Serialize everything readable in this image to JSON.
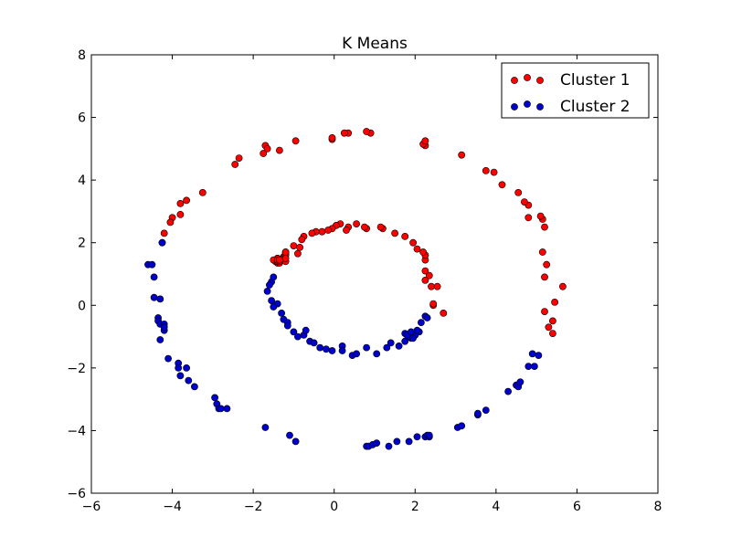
{
  "chart_data": {
    "type": "scatter",
    "title": "K Means",
    "xlabel": "",
    "ylabel": "",
    "xlim": [
      -6,
      8
    ],
    "ylim": [
      -6,
      8
    ],
    "xticks": [
      "−6",
      "−4",
      "−2",
      "0",
      "2",
      "4",
      "6",
      "8"
    ],
    "yticks": [
      "−6",
      "−4",
      "−2",
      "0",
      "2",
      "4",
      "6",
      "8"
    ],
    "xtick_values": [
      -6,
      -4,
      -2,
      0,
      2,
      4,
      6,
      8
    ],
    "ytick_values": [
      -6,
      -4,
      -2,
      0,
      2,
      4,
      6,
      8
    ],
    "grid": false,
    "legend_position": "top-right",
    "series": [
      {
        "name": "Cluster 1",
        "color": "#ff0000",
        "points": [
          [
            5.65,
            0.6
          ],
          [
            5.45,
            0.1
          ],
          [
            5.4,
            -0.5
          ],
          [
            5.4,
            -0.9
          ],
          [
            5.3,
            -0.7
          ],
          [
            5.2,
            -0.2
          ],
          [
            5.2,
            0.9
          ],
          [
            5.25,
            1.3
          ],
          [
            5.15,
            1.7
          ],
          [
            5.2,
            2.5
          ],
          [
            5.15,
            2.75
          ],
          [
            5.1,
            2.85
          ],
          [
            4.8,
            2.8
          ],
          [
            4.8,
            3.2
          ],
          [
            4.7,
            3.3
          ],
          [
            4.55,
            3.6
          ],
          [
            4.15,
            3.85
          ],
          [
            3.95,
            4.25
          ],
          [
            3.75,
            4.3
          ],
          [
            3.15,
            4.8
          ],
          [
            2.25,
            5.1
          ],
          [
            2.2,
            5.15
          ],
          [
            2.25,
            5.25
          ],
          [
            0.9,
            5.5
          ],
          [
            0.8,
            5.55
          ],
          [
            0.35,
            5.5
          ],
          [
            0.25,
            5.5
          ],
          [
            -0.05,
            5.3
          ],
          [
            -0.05,
            5.35
          ],
          [
            -0.95,
            5.25
          ],
          [
            -1.35,
            4.95
          ],
          [
            -1.7,
            5.1
          ],
          [
            -1.65,
            5.0
          ],
          [
            -1.75,
            4.85
          ],
          [
            -2.35,
            4.7
          ],
          [
            -2.45,
            4.5
          ],
          [
            -3.25,
            3.6
          ],
          [
            -3.65,
            3.35
          ],
          [
            -3.8,
            3.25
          ],
          [
            -3.8,
            2.9
          ],
          [
            -4.0,
            2.8
          ],
          [
            -4.05,
            2.65
          ],
          [
            -4.2,
            2.3
          ],
          [
            -4.25,
            2.0
          ],
          [
            2.7,
            -0.25
          ],
          [
            2.45,
            0.0
          ],
          [
            2.45,
            0.05
          ],
          [
            2.55,
            0.6
          ],
          [
            2.4,
            0.6
          ],
          [
            2.35,
            0.95
          ],
          [
            2.25,
            0.8
          ],
          [
            2.25,
            1.1
          ],
          [
            2.25,
            1.45
          ],
          [
            2.25,
            1.6
          ],
          [
            2.2,
            1.7
          ],
          [
            2.05,
            1.8
          ],
          [
            1.95,
            2.0
          ],
          [
            1.75,
            2.2
          ],
          [
            1.5,
            2.3
          ],
          [
            1.2,
            2.45
          ],
          [
            1.15,
            2.5
          ],
          [
            0.8,
            2.45
          ],
          [
            0.75,
            2.5
          ],
          [
            0.55,
            2.6
          ],
          [
            0.35,
            2.5
          ],
          [
            0.3,
            2.4
          ],
          [
            0.15,
            2.6
          ],
          [
            0.05,
            2.55
          ],
          [
            -0.05,
            2.45
          ],
          [
            -0.15,
            2.4
          ],
          [
            -0.3,
            2.35
          ],
          [
            -0.45,
            2.35
          ],
          [
            -0.55,
            2.3
          ],
          [
            -0.75,
            2.2
          ],
          [
            -0.8,
            2.1
          ],
          [
            -0.85,
            1.85
          ],
          [
            -0.9,
            1.65
          ],
          [
            -1.0,
            1.9
          ],
          [
            -1.2,
            1.7
          ],
          [
            -1.2,
            1.65
          ],
          [
            -1.25,
            1.55
          ],
          [
            -1.4,
            1.5
          ],
          [
            -1.35,
            1.4
          ],
          [
            -1.35,
            1.45
          ],
          [
            -1.25,
            1.5
          ],
          [
            -1.2,
            1.4
          ],
          [
            -1.45,
            1.45
          ],
          [
            -1.4,
            1.35
          ],
          [
            -1.2,
            1.6
          ],
          [
            -1.45,
            1.4
          ],
          [
            -1.4,
            1.5
          ],
          [
            -1.35,
            1.35
          ],
          [
            -1.5,
            1.45
          ],
          [
            -1.4,
            1.4
          ],
          [
            -1.2,
            1.5
          ],
          [
            -1.2,
            1.7
          ],
          [
            -1.35,
            1.4
          ],
          [
            -1.4,
            1.45
          ],
          [
            -1.35,
            1.45
          ]
        ]
      },
      {
        "name": "Cluster 2",
        "color": "#0000cc",
        "points": [
          [
            -4.25,
            2.0
          ],
          [
            -4.6,
            1.3
          ],
          [
            -4.5,
            1.3
          ],
          [
            -4.45,
            0.9
          ],
          [
            -4.45,
            0.25
          ],
          [
            -4.3,
            0.2
          ],
          [
            -4.35,
            -0.4
          ],
          [
            -4.35,
            -0.5
          ],
          [
            -4.3,
            -0.6
          ],
          [
            -4.2,
            -0.6
          ],
          [
            -4.2,
            -0.8
          ],
          [
            -4.2,
            -0.7
          ],
          [
            -4.3,
            -1.1
          ],
          [
            -4.1,
            -1.7
          ],
          [
            -3.85,
            -1.85
          ],
          [
            -3.85,
            -2.0
          ],
          [
            -3.65,
            -2.0
          ],
          [
            -3.8,
            -2.25
          ],
          [
            -3.6,
            -2.4
          ],
          [
            -3.45,
            -2.6
          ],
          [
            -2.95,
            -2.95
          ],
          [
            -2.9,
            -3.15
          ],
          [
            -2.85,
            -3.3
          ],
          [
            -2.8,
            -3.3
          ],
          [
            -2.65,
            -3.3
          ],
          [
            -1.7,
            -3.9
          ],
          [
            -1.1,
            -4.15
          ],
          [
            -0.95,
            -4.35
          ],
          [
            0.8,
            -4.5
          ],
          [
            0.85,
            -4.5
          ],
          [
            0.95,
            -4.45
          ],
          [
            1.05,
            -4.4
          ],
          [
            1.35,
            -4.5
          ],
          [
            1.55,
            -4.35
          ],
          [
            1.85,
            -4.35
          ],
          [
            2.05,
            -4.2
          ],
          [
            2.25,
            -4.2
          ],
          [
            2.3,
            -4.15
          ],
          [
            2.35,
            -4.2
          ],
          [
            2.35,
            -4.15
          ],
          [
            3.05,
            -3.9
          ],
          [
            3.15,
            -3.85
          ],
          [
            3.55,
            -3.5
          ],
          [
            3.55,
            -3.45
          ],
          [
            3.75,
            -3.35
          ],
          [
            4.3,
            -2.75
          ],
          [
            4.5,
            -2.55
          ],
          [
            4.55,
            -2.6
          ],
          [
            4.6,
            -2.45
          ],
          [
            4.8,
            -1.95
          ],
          [
            4.9,
            -1.55
          ],
          [
            4.95,
            -1.95
          ],
          [
            5.05,
            -1.6
          ],
          [
            -1.55,
            0.75
          ],
          [
            -1.5,
            0.9
          ],
          [
            -1.6,
            0.65
          ],
          [
            -1.65,
            0.45
          ],
          [
            -1.55,
            0.15
          ],
          [
            -1.4,
            0.05
          ],
          [
            -1.5,
            -0.05
          ],
          [
            -1.3,
            -0.25
          ],
          [
            -1.25,
            -0.45
          ],
          [
            -1.15,
            -0.55
          ],
          [
            -1.15,
            -0.65
          ],
          [
            -1.0,
            -0.85
          ],
          [
            -0.9,
            -1.0
          ],
          [
            -0.75,
            -0.95
          ],
          [
            -0.7,
            -0.8
          ],
          [
            -0.6,
            -1.15
          ],
          [
            -0.5,
            -1.2
          ],
          [
            -0.35,
            -1.35
          ],
          [
            -0.2,
            -1.4
          ],
          [
            -0.05,
            -1.45
          ],
          [
            0.2,
            -1.3
          ],
          [
            0.2,
            -1.45
          ],
          [
            0.45,
            -1.6
          ],
          [
            0.55,
            -1.55
          ],
          [
            0.8,
            -1.35
          ],
          [
            1.05,
            -1.55
          ],
          [
            1.3,
            -1.35
          ],
          [
            1.4,
            -1.2
          ],
          [
            1.6,
            -1.3
          ],
          [
            1.75,
            -1.15
          ],
          [
            1.75,
            -0.9
          ],
          [
            1.85,
            -0.95
          ],
          [
            1.9,
            -1.05
          ],
          [
            2.0,
            -0.9
          ],
          [
            2.1,
            -0.85
          ],
          [
            2.15,
            -0.55
          ],
          [
            2.25,
            -0.35
          ],
          [
            2.3,
            -0.4
          ],
          [
            1.95,
            -0.9
          ],
          [
            1.85,
            -1.0
          ],
          [
            1.8,
            -0.95
          ],
          [
            2.0,
            -0.95
          ],
          [
            1.9,
            -0.85
          ],
          [
            2.05,
            -0.8
          ],
          [
            1.95,
            -1.05
          ]
        ]
      }
    ]
  }
}
